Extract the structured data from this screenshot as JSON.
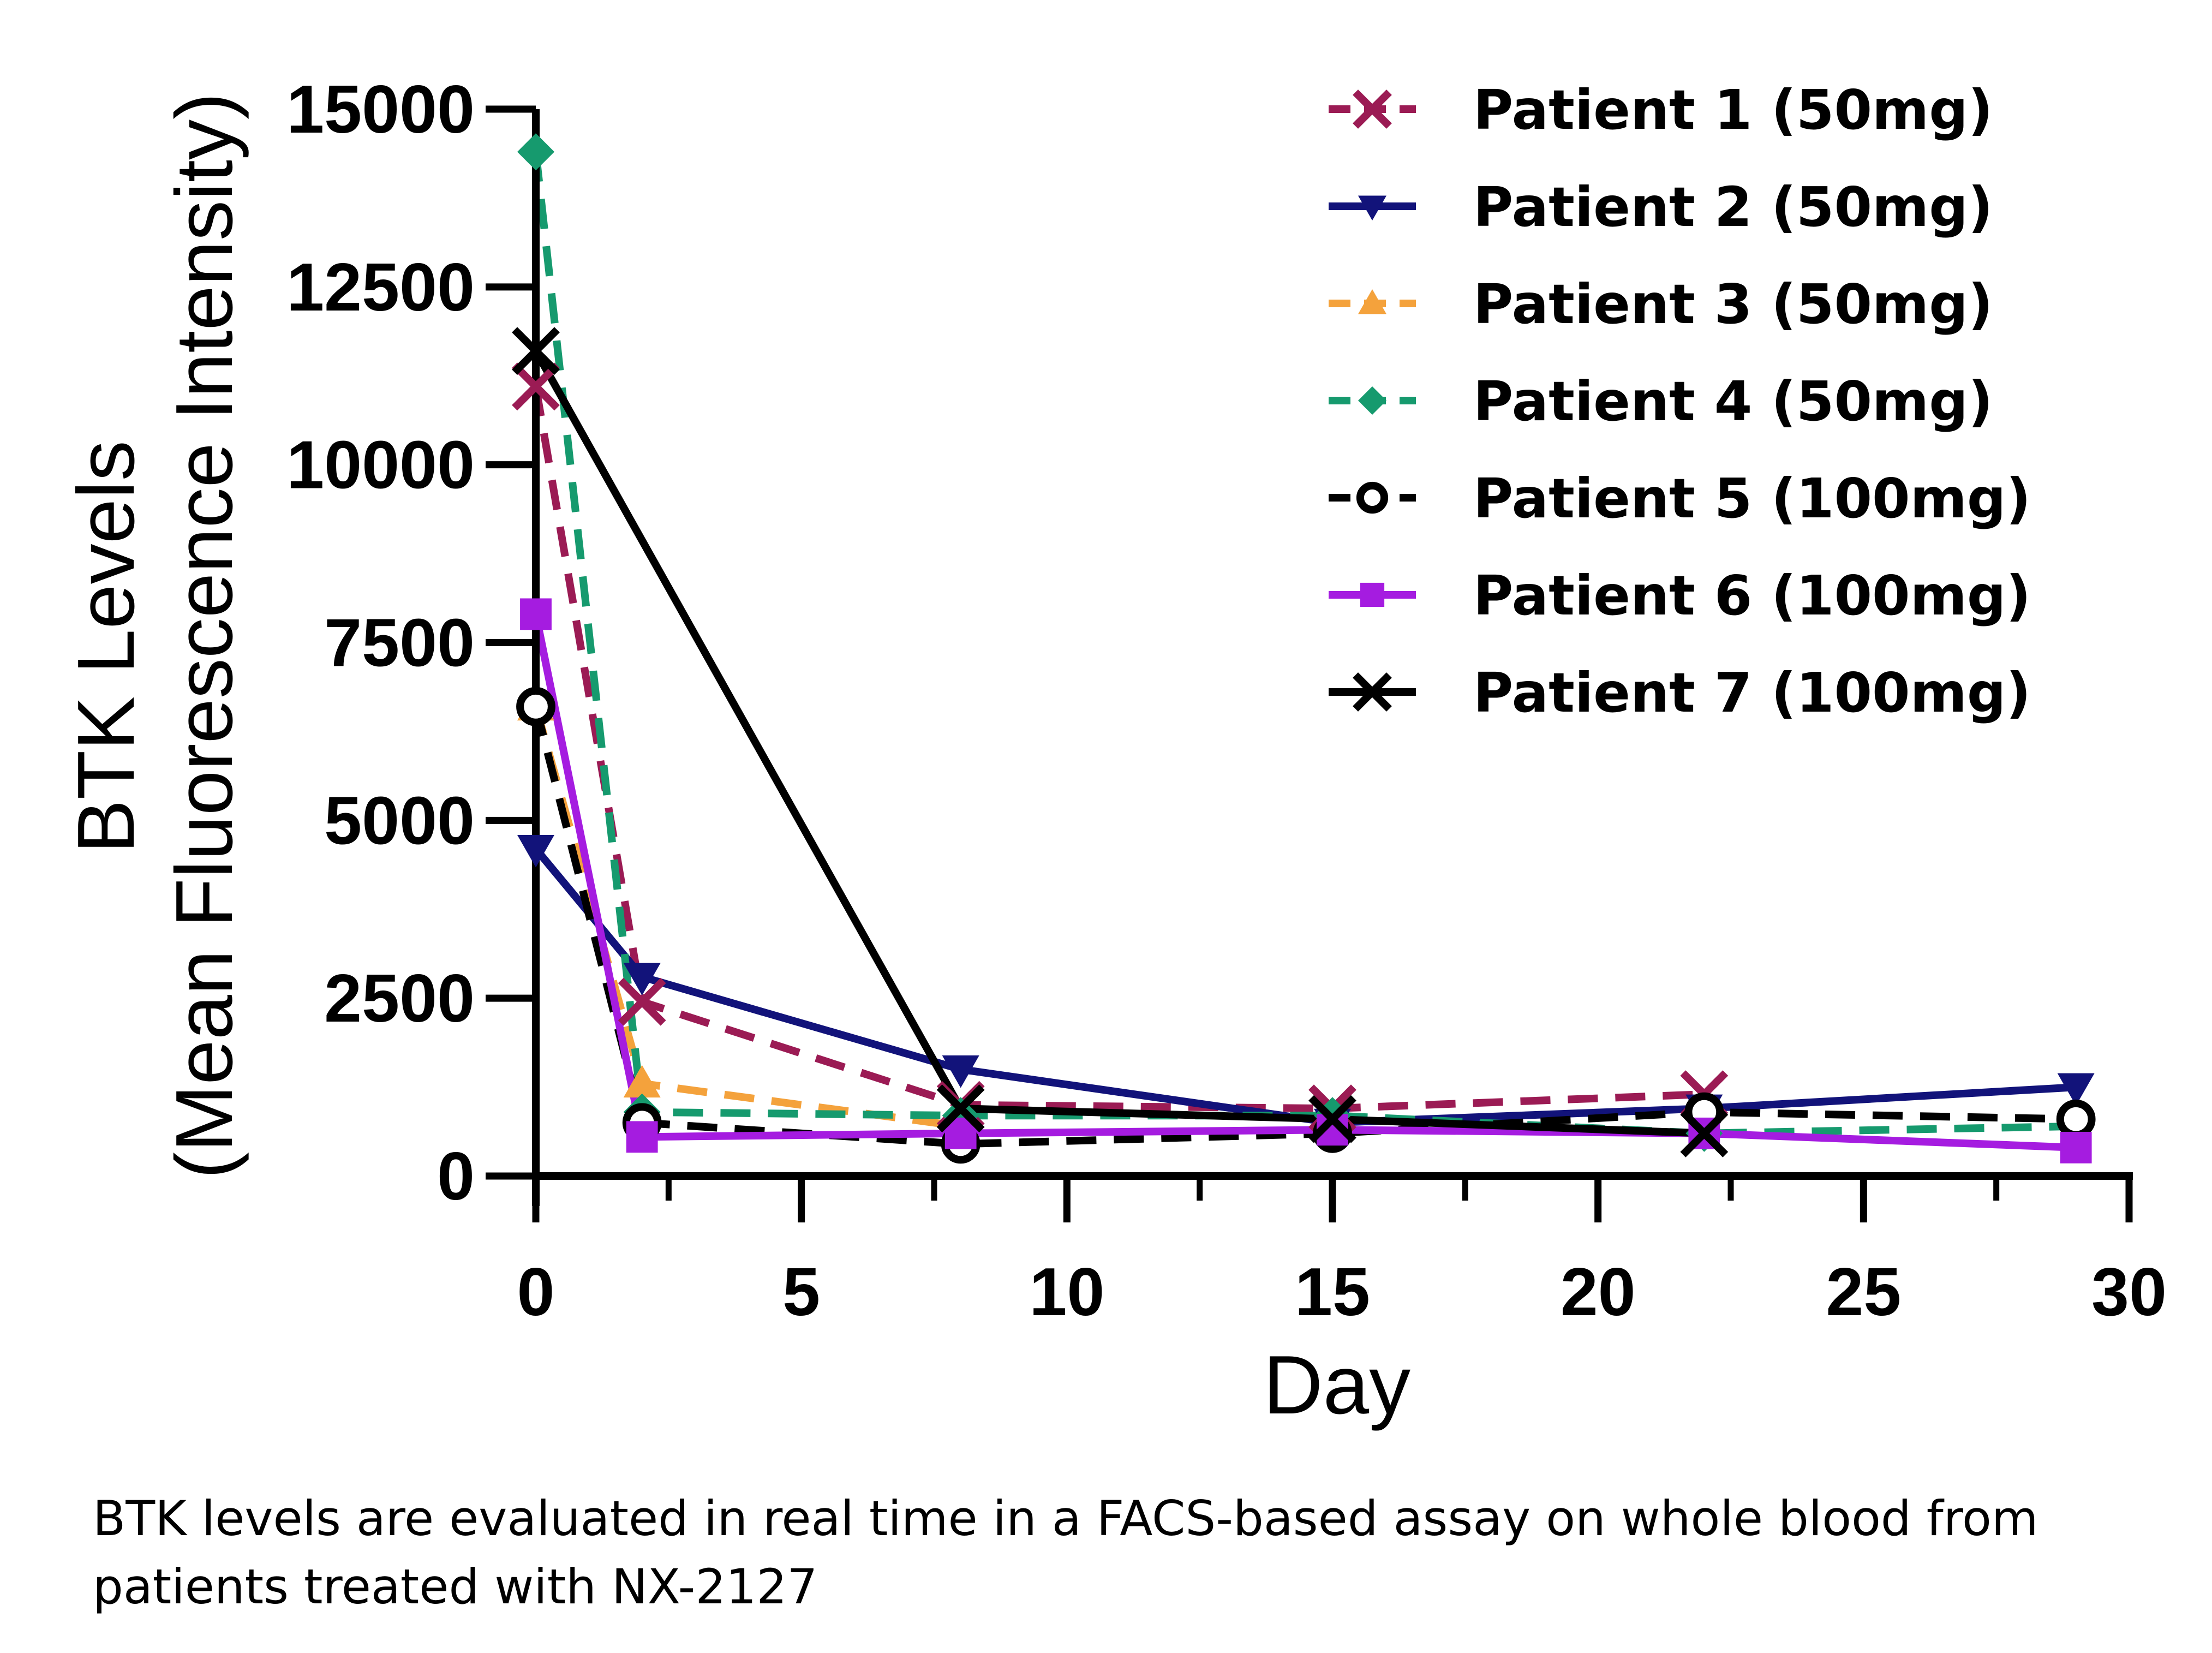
{
  "chart_data": {
    "type": "line",
    "title": "",
    "xlabel": "Day",
    "ylabel_line1": "BTK Levels",
    "ylabel_line2": "(Mean Fluorescence Intensity)",
    "xlim": [
      0,
      30
    ],
    "ylim": [
      0,
      15000
    ],
    "xticks": [
      0,
      5,
      10,
      15,
      20,
      25,
      30
    ],
    "xtick_labels": [
      "0",
      "5",
      "10",
      "15",
      "20",
      "25",
      "30"
    ],
    "yticks": [
      0,
      2500,
      5000,
      7500,
      10000,
      12500,
      15000
    ],
    "ytick_labels": [
      "0",
      "2500",
      "5000",
      "7500",
      "10000",
      "12500",
      "15000"
    ],
    "grid": false,
    "legend_position": "top-right",
    "series": [
      {
        "name": "Patient 1 (50mg)",
        "color": "#9b1b54",
        "marker": "x",
        "dashed": true,
        "x": [
          0,
          2,
          8,
          15,
          22
        ],
        "y": [
          11100,
          2450,
          1000,
          950,
          1150
        ]
      },
      {
        "name": "Patient 2 (50mg)",
        "color": "#12137a",
        "marker": "triangle-down",
        "dashed": false,
        "x": [
          0,
          2,
          8,
          15,
          22,
          29
        ],
        "y": [
          4600,
          2800,
          1500,
          750,
          950,
          1250
        ]
      },
      {
        "name": "Patient 3 (50mg)",
        "color": "#f4a23c",
        "marker": "triangle-up",
        "dashed": true,
        "x": [
          0,
          2,
          8
        ],
        "y": [
          6600,
          1300,
          700
        ]
      },
      {
        "name": "Patient 4 (50mg)",
        "color": "#169a6e",
        "marker": "diamond",
        "dashed": true,
        "x": [
          0,
          2,
          8,
          15,
          22,
          29
        ],
        "y": [
          14400,
          900,
          850,
          850,
          600,
          700
        ]
      },
      {
        "name": "Patient 5 (100mg)",
        "color": "#000000",
        "marker": "circle-open",
        "dashed": true,
        "x": [
          0,
          2,
          8,
          15,
          22,
          29
        ],
        "y": [
          6600,
          750,
          450,
          600,
          900,
          800
        ]
      },
      {
        "name": "Patient 6 (100mg)",
        "color": "#a51ce0",
        "marker": "square",
        "dashed": false,
        "x": [
          0,
          2,
          8,
          15,
          22,
          29
        ],
        "y": [
          7900,
          550,
          600,
          650,
          600,
          400
        ]
      },
      {
        "name": "Patient 7 (100mg)",
        "color": "#000000",
        "marker": "x",
        "dashed": false,
        "x": [
          0,
          8,
          15,
          22
        ],
        "y": [
          11600,
          950,
          800,
          600
        ]
      }
    ]
  },
  "caption": "BTK levels are evaluated in real time in a FACS-based assay on whole blood from patients treated with NX-2127"
}
